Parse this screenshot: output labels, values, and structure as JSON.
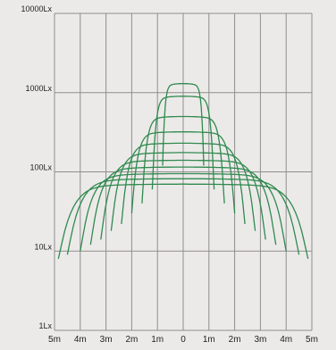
{
  "colors": {
    "background": "#eceae9",
    "grid": "#8e8e8e",
    "curve": "#2f8a4e",
    "text": "#1e1e1e"
  },
  "chart_data": {
    "type": "line",
    "title": "",
    "xlabel": "",
    "ylabel": "",
    "xscale": "linear",
    "yscale": "log",
    "xlim": [
      -5,
      5
    ],
    "ylim": [
      1,
      10000
    ],
    "grid": true,
    "legend": "none",
    "x_tick_values": [
      -5,
      -4,
      -3,
      -2,
      -1,
      0,
      1,
      2,
      3,
      4,
      5
    ],
    "x_tick_labels": [
      "5m",
      "4m",
      "3m",
      "2m",
      "1m",
      "0",
      "1m",
      "2m",
      "3m",
      "4m",
      "5m"
    ],
    "y_tick_values": [
      1,
      10,
      100,
      1000,
      10000
    ],
    "y_tick_labels": [
      "1Lx",
      "10Lx",
      "100Lx",
      "1000Lx",
      "10000Lx"
    ],
    "series": [
      {
        "peak": 1300,
        "edge_x": 0.8,
        "edge_y": 120
      },
      {
        "peak": 900,
        "edge_x": 1.2,
        "edge_y": 60
      },
      {
        "peak": 500,
        "edge_x": 1.6,
        "edge_y": 40
      },
      {
        "peak": 320,
        "edge_x": 2.0,
        "edge_y": 30
      },
      {
        "peak": 230,
        "edge_x": 2.4,
        "edge_y": 22
      },
      {
        "peak": 175,
        "edge_x": 2.8,
        "edge_y": 18
      },
      {
        "peak": 140,
        "edge_x": 3.2,
        "edge_y": 14
      },
      {
        "peak": 115,
        "edge_x": 3.6,
        "edge_y": 12
      },
      {
        "peak": 95,
        "edge_x": 4.0,
        "edge_y": 10
      },
      {
        "peak": 82,
        "edge_x": 4.5,
        "edge_y": 9
      },
      {
        "peak": 70,
        "edge_x": 4.85,
        "edge_y": 8
      }
    ]
  }
}
